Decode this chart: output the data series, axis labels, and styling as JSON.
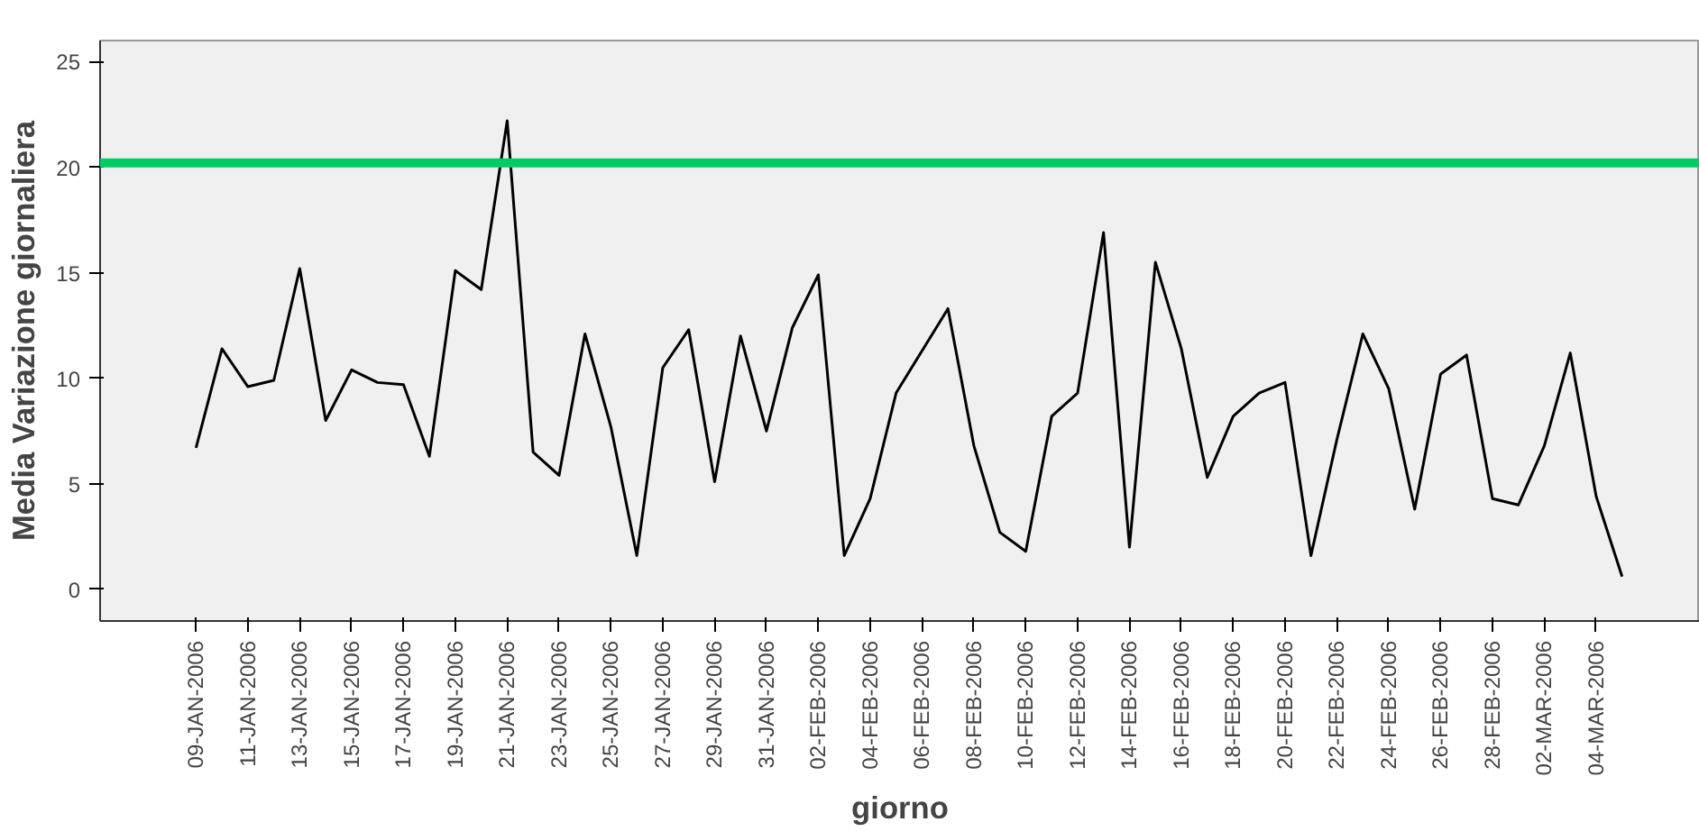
{
  "chart_data": {
    "type": "line",
    "xlabel": "giorno",
    "ylabel": "Media Variazione giornaliera",
    "categories": [
      "09-JAN-2006",
      null,
      "11-JAN-2006",
      null,
      "13-JAN-2006",
      null,
      "15-JAN-2006",
      null,
      "17-JAN-2006",
      null,
      "19-JAN-2006",
      null,
      "21-JAN-2006",
      null,
      "23-JAN-2006",
      null,
      "25-JAN-2006",
      null,
      "27-JAN-2006",
      null,
      "29-JAN-2006",
      null,
      "31-JAN-2006",
      null,
      "02-FEB-2006",
      null,
      "04-FEB-2006",
      null,
      "06-FEB-2006",
      null,
      "08-FEB-2006",
      null,
      "10-FEB-2006",
      null,
      "12-FEB-2006",
      null,
      "14-FEB-2006",
      null,
      "16-FEB-2006",
      null,
      "18-FEB-2006",
      null,
      "20-FEB-2006",
      null,
      "22-FEB-2006",
      null,
      "24-FEB-2006",
      null,
      "26-FEB-2006",
      null,
      "28-FEB-2006",
      null,
      "02-MAR-2006",
      null,
      "04-MAR-2006",
      null
    ],
    "series": [
      {
        "color": "#000000",
        "values": [
          6.7,
          11.4,
          9.6,
          9.9,
          15.2,
          8.0,
          10.4,
          9.8,
          9.7,
          6.3,
          15.1,
          14.2,
          22.2,
          6.5,
          5.4,
          12.1,
          7.7,
          1.6,
          10.5,
          12.3,
          5.1,
          12.0,
          7.5,
          12.4,
          14.9,
          1.6,
          4.3,
          9.3,
          11.3,
          13.3,
          6.8,
          2.7,
          1.8,
          8.2,
          9.3,
          16.9,
          2.0,
          15.5,
          11.4,
          5.3,
          8.2,
          9.3,
          9.8,
          1.6,
          7.1,
          12.1,
          9.5,
          3.8,
          10.2,
          11.1,
          4.3,
          4.0,
          6.8,
          11.2,
          4.4,
          0.6
        ]
      }
    ],
    "ylim": [
      -1.5,
      26
    ],
    "yticks": [
      0,
      5,
      10,
      15,
      20,
      25
    ],
    "grid": false,
    "marker": "none",
    "line_style": "solid",
    "ref_lines": [
      {
        "axis": "y",
        "value": 20.2,
        "label": null,
        "color": "#00cc66",
        "line_style": "solid"
      }
    ]
  }
}
